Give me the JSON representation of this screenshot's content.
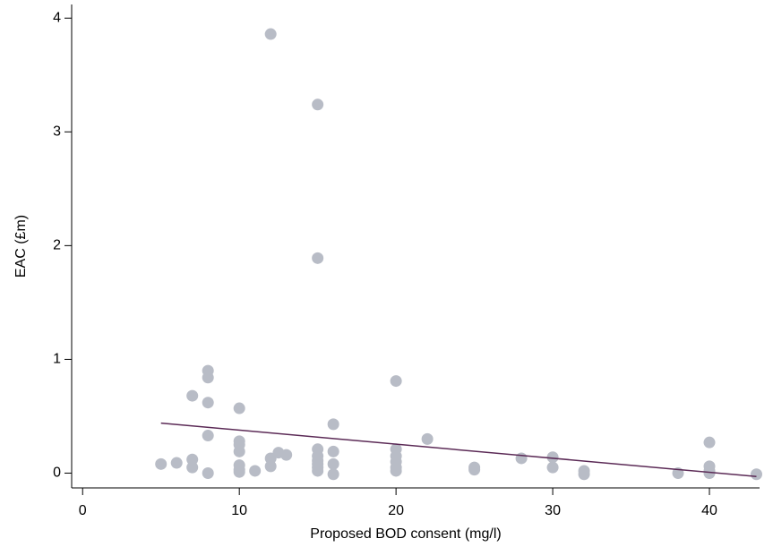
{
  "chart_data": {
    "type": "scatter",
    "x_label": "Proposed BOD consent (mg/l)",
    "y_label": "EAC (£m)",
    "xlim": [
      -0.7,
      43.2
    ],
    "ylim": [
      -0.13,
      4.12
    ],
    "xticks": [
      0,
      10,
      20,
      30,
      40
    ],
    "yticks": [
      0,
      1,
      2,
      3,
      4
    ],
    "grid": false,
    "series": [
      {
        "color": "#b8bcc6",
        "x": [
          5,
          6,
          7,
          7,
          7,
          8,
          8,
          8,
          8,
          8,
          10,
          10,
          10,
          10,
          10,
          10,
          10,
          11,
          12,
          12,
          12,
          12.5,
          13,
          15,
          15,
          15,
          15,
          15,
          15,
          15,
          15,
          16,
          16,
          16,
          16,
          20,
          20,
          20,
          20,
          20,
          20,
          22,
          25,
          25,
          28,
          30,
          30,
          32,
          32,
          38,
          40,
          40,
          40,
          40,
          43
        ],
        "values": [
          0.08,
          0.09,
          0.68,
          0.12,
          0.05,
          0.9,
          0.84,
          0.62,
          0.33,
          0.0,
          0.57,
          0.28,
          0.25,
          0.19,
          0.07,
          0.03,
          0.01,
          0.02,
          3.86,
          0.13,
          0.06,
          0.18,
          0.16,
          3.24,
          1.89,
          0.21,
          0.15,
          0.11,
          0.08,
          0.05,
          0.02,
          0.43,
          0.19,
          0.08,
          -0.01,
          0.81,
          0.21,
          0.15,
          0.1,
          0.05,
          0.02,
          0.3,
          0.05,
          0.03,
          0.13,
          0.14,
          0.05,
          0.02,
          -0.01,
          0.0,
          0.27,
          0.06,
          0.02,
          0.0,
          -0.01
        ]
      }
    ],
    "fit": {
      "color": "#5b2a56",
      "x": [
        5,
        43
      ],
      "values": [
        0.44,
        -0.03
      ]
    }
  }
}
